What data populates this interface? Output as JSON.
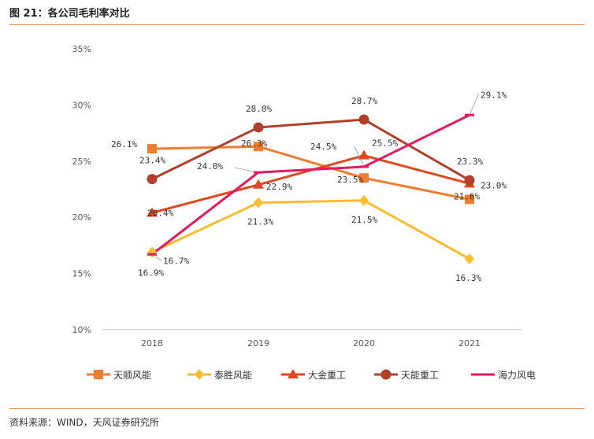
{
  "figure": {
    "title": "图 21：各公司毛利率对比",
    "source": "资料来源：WIND，天风证券研究所"
  },
  "chart_data": {
    "type": "line",
    "title": "各公司毛利率对比",
    "categories": [
      "2018",
      "2019",
      "2020",
      "2021"
    ],
    "yticks": [
      "10%",
      "15%",
      "20%",
      "25%",
      "30%",
      "35%"
    ],
    "ylim": [
      10,
      35
    ],
    "legend_position": "bottom",
    "series": [
      {
        "name": "天顺风能",
        "color": "#ee7d2f",
        "marker": "square",
        "values": [
          26.1,
          26.3,
          23.5,
          21.6
        ],
        "labels": [
          "26.1%",
          "26.3%",
          "23.5%",
          "21.6%"
        ]
      },
      {
        "name": "泰胜风能",
        "color": "#fbbd30",
        "marker": "diamond",
        "values": [
          16.9,
          21.3,
          21.5,
          16.3
        ],
        "labels": [
          "16.9%",
          "21.3%",
          "21.5%",
          "16.3%"
        ]
      },
      {
        "name": "大金重工",
        "color": "#e0481f",
        "marker": "triangle",
        "values": [
          20.4,
          22.9,
          25.5,
          23.0
        ],
        "labels": [
          "20.4%",
          "22.9%",
          "25.5%",
          "23.0%"
        ]
      },
      {
        "name": "天能重工",
        "color": "#b0402c",
        "marker": "circle",
        "values": [
          23.4,
          28.0,
          28.7,
          23.3
        ],
        "labels": [
          "23.4%",
          "28.0%",
          "28.7%",
          "23.3%"
        ]
      },
      {
        "name": "海力风电",
        "color": "#e5195f",
        "marker": "dash",
        "values": [
          16.7,
          24.0,
          24.5,
          29.1
        ],
        "labels": [
          "16.7%",
          "24.0%",
          "24.5%",
          "29.1%"
        ]
      }
    ]
  }
}
